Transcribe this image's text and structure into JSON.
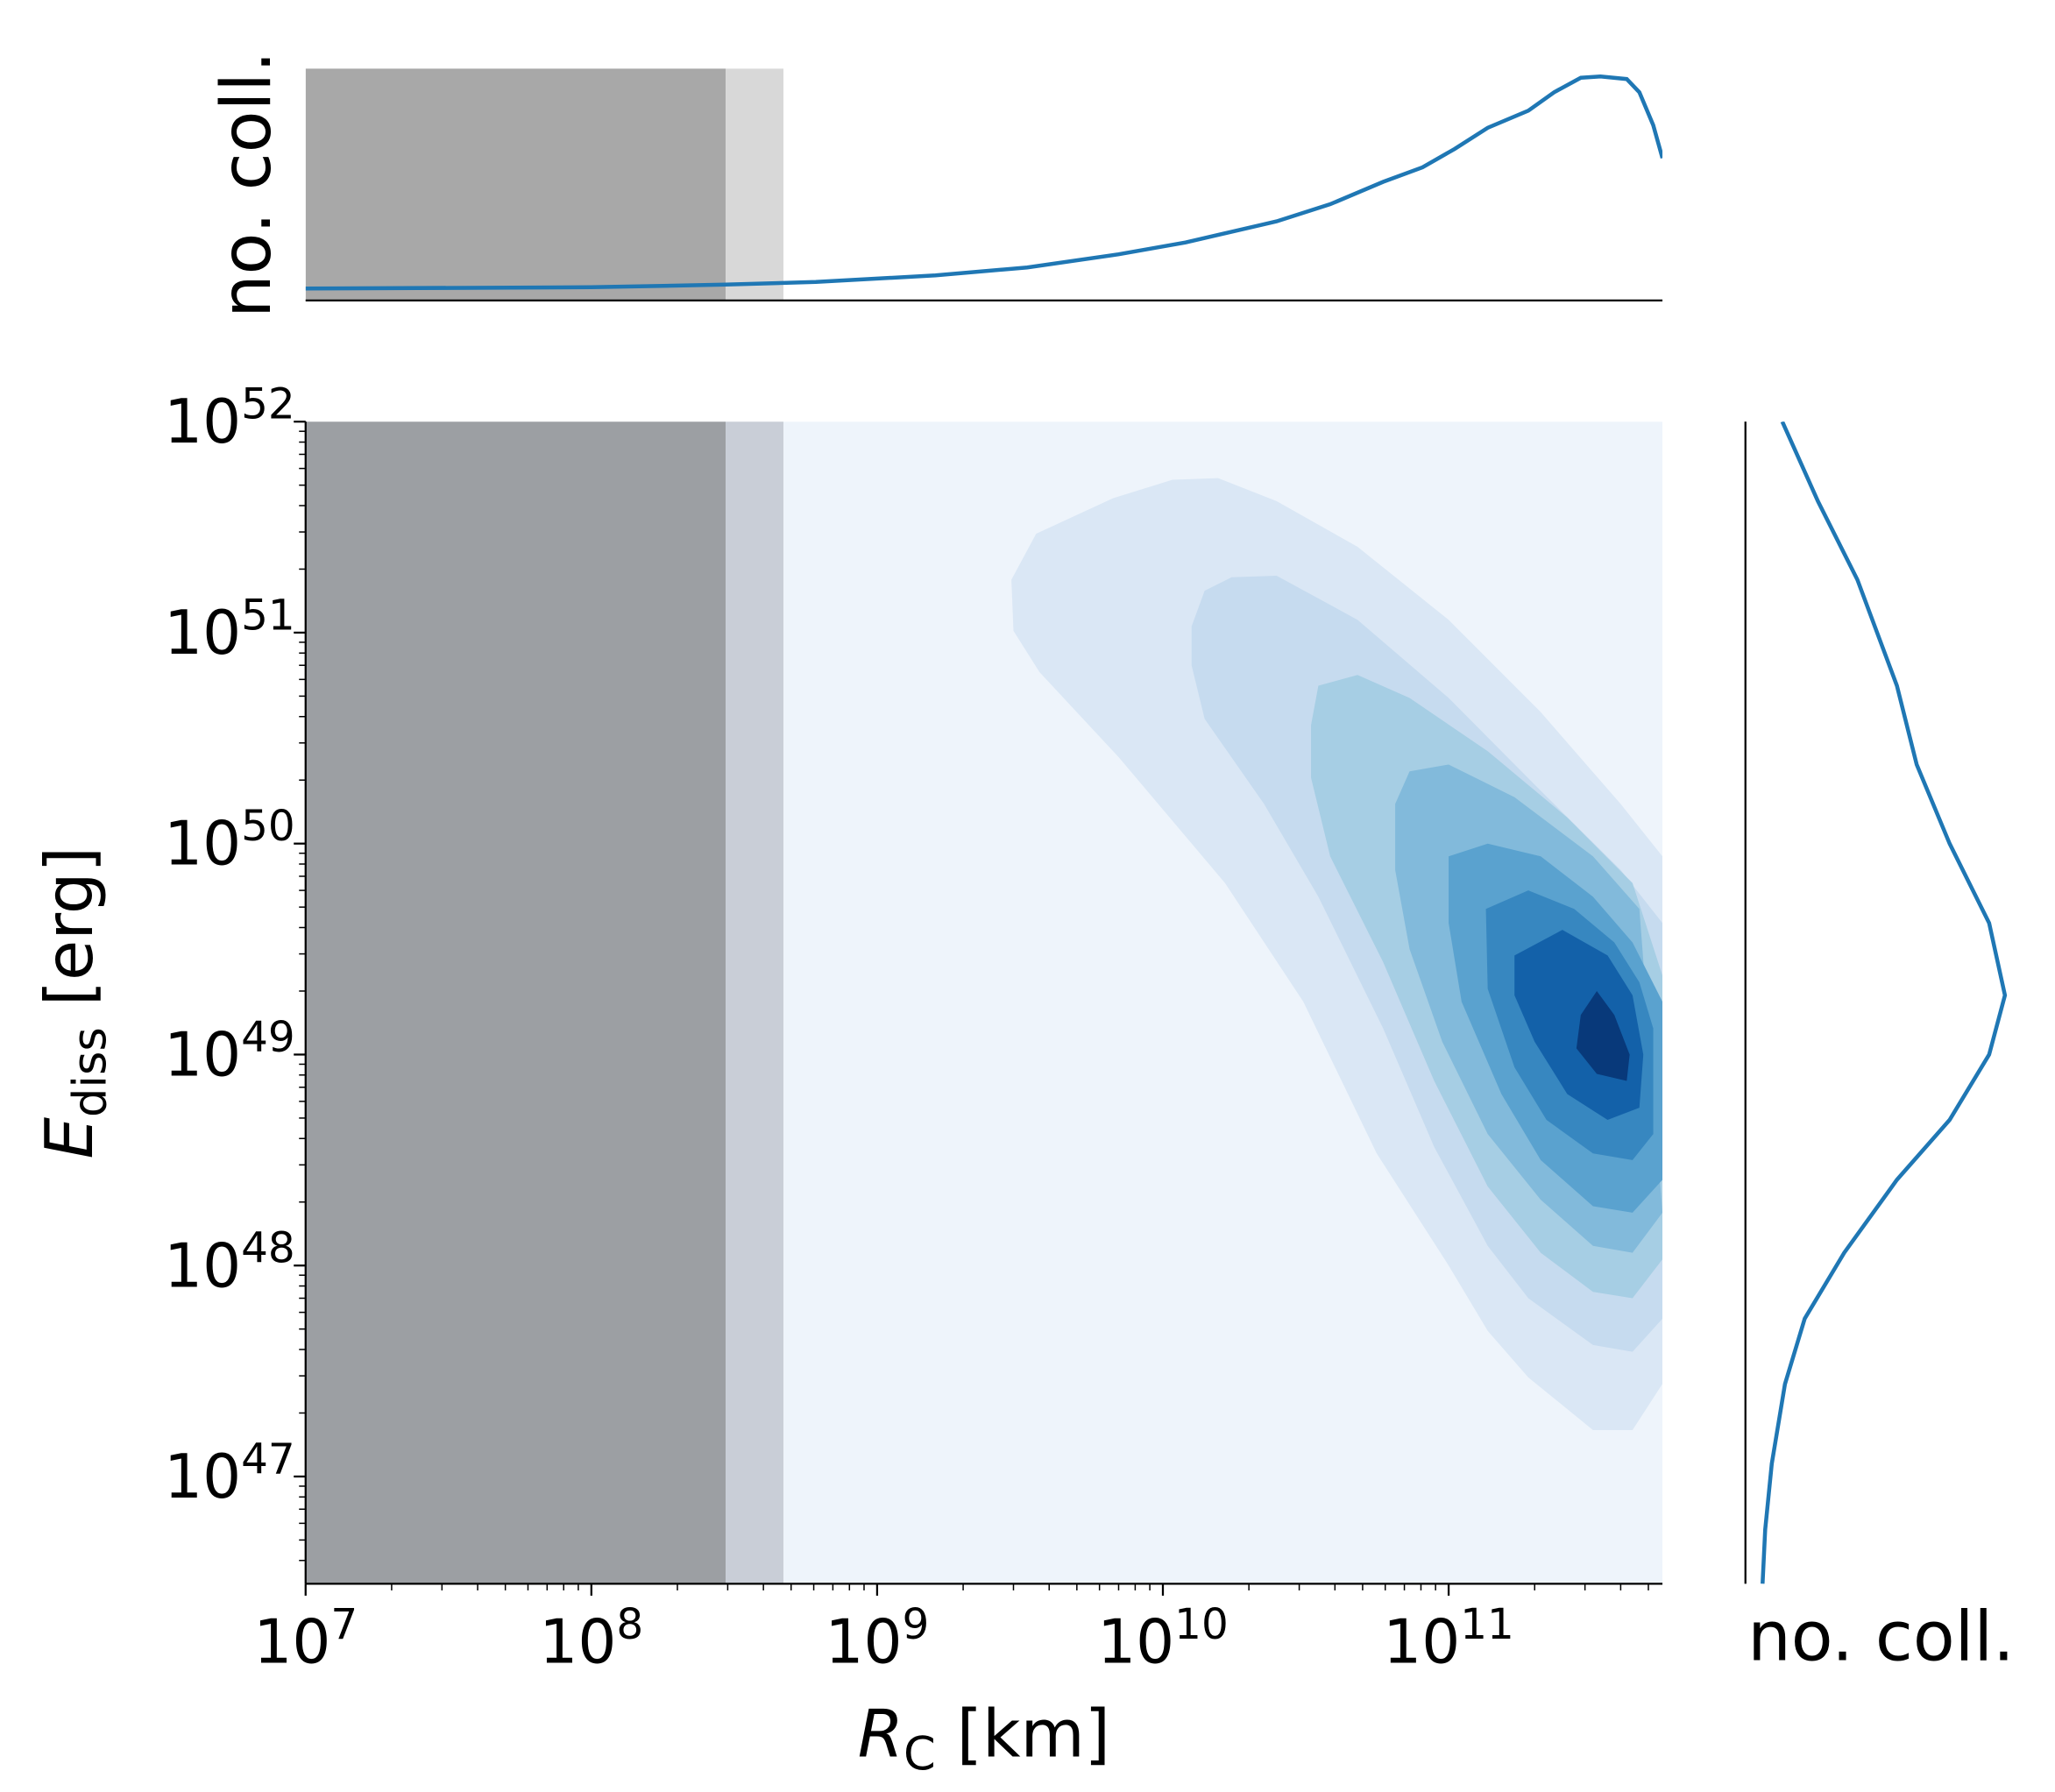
{
  "chart_data": [
    {
      "type": "contour",
      "xlabel": [
        "R",
        "C",
        " [km]"
      ],
      "ylabel": [
        "E",
        "diss",
        " [erg]"
      ],
      "xscale": "log",
      "yscale": "log",
      "xlim": [
        10000000.0,
        560000000000.0
      ],
      "ylim": [
        3.1e+46,
        1e+52
      ],
      "xticks": [
        {
          "value": 10000000.0,
          "label": [
            "10",
            "7"
          ]
        },
        {
          "value": 100000000.0,
          "label": [
            "10",
            "8"
          ]
        },
        {
          "value": 1000000000.0,
          "label": [
            "10",
            "9"
          ]
        },
        {
          "value": 10000000000.0,
          "label": [
            "10",
            "10"
          ]
        },
        {
          "value": 100000000000.0,
          "label": [
            "10",
            "11"
          ]
        }
      ],
      "yticks": [
        {
          "value": 1e+47,
          "label": [
            "10",
            "47"
          ]
        },
        {
          "value": 1e+48,
          "label": [
            "10",
            "48"
          ]
        },
        {
          "value": 1e+49,
          "label": [
            "10",
            "49"
          ]
        },
        {
          "value": 1e+50,
          "label": [
            "10",
            "50"
          ]
        },
        {
          "value": 1e+51,
          "label": [
            "10",
            "51"
          ]
        },
        {
          "value": 1e+52,
          "label": [
            "10",
            "52"
          ]
        }
      ],
      "background": "#eef4fb",
      "shaded_regions": [
        {
          "xlim": [
            10000000.0,
            295000000.0
          ],
          "color": "#9c9fa3"
        },
        {
          "xlim": [
            295000000.0,
            470000000.0
          ],
          "color": "#c9ced7"
        }
      ],
      "levels": [
        {
          "color": "#dae7f5",
          "x": [
            2950000000.0,
            3600000000.0,
            6700000000.0,
            10800000000.0,
            15600000000.0,
            25000000000.0,
            48000000000.0,
            100000000000.0,
            210000000000.0,
            400000000000.0,
            560000000000.0,
            560000000000.0,
            440000000000.0,
            320000000000.0,
            190000000000.0,
            137000000000.0,
            100000000000.0,
            56000000000.0,
            31000000000.0,
            16500000000.0,
            7000000000.0,
            3700000000.0,
            3000000000.0
          ],
          "y": [
            1.78e+51,
            2.94e+51,
            4.34e+51,
            5.3e+51,
            5.4e+51,
            4.2e+51,
            2.55e+51,
            1.15e+51,
            4.2e+50,
            1.54e+50,
            8.7e+49,
            2.75e+47,
            1.66e+47,
            1.66e+47,
            2.95e+47,
            4.9e+47,
            1e+48,
            3.4e+48,
            1.78e+49,
            6.5e+49,
            2.57e+50,
            6.5e+50,
            1.02e+51
          ]
        },
        {
          "color": "#c6dbef",
          "x": [
            12600000000.0,
            14000000000.0,
            17400000000.0,
            25000000000.0,
            48000000000.0,
            100000000000.0,
            210000000000.0,
            400000000000.0,
            560000000000.0,
            560000000000.0,
            440000000000.0,
            320000000000.0,
            190000000000.0,
            137000000000.0,
            89000000000.0,
            59000000000.0,
            35000000000.0,
            22600000000.0,
            14000000000.0,
            12600000000.0
          ],
          "y": [
            1.07e+51,
            1.58e+51,
            1.83e+51,
            1.86e+51,
            1.15e+51,
            4.9e+50,
            1.78e+50,
            7.5e+49,
            4.2e+49,
            5.6e+47,
            3.9e+47,
            4.2e+47,
            7e+47,
            1.24e+48,
            3.65e+48,
            1.33e+49,
            5.6e+49,
            1.54e+50,
            3.9e+50,
            7e+50
          ]
        },
        {
          "color": "#a6cee4",
          "x": [
            33000000000.0,
            35000000000.0,
            48000000000.0,
            73000000000.0,
            137000000000.0,
            260000000000.0,
            440000000000.0,
            560000000000.0,
            560000000000.0,
            440000000000.0,
            320000000000.0,
            210000000000.0,
            137000000000.0,
            89000000000.0,
            59000000000.0,
            38500000000.0,
            33000000000.0
          ],
          "y": [
            3.65e+50,
            5.6e+50,
            6.3e+50,
            4.9e+50,
            2.74e+50,
            1.33e+50,
            6.5e+49,
            2.37e+49,
            1.07e+48,
            7e+47,
            7.5e+47,
            1.15e+48,
            2.37e+48,
            7.5e+48,
            2.74e+49,
            8.7e+49,
            2.05e+50
          ]
        },
        {
          "color": "#82badb",
          "x": [
            65000000000.0,
            73000000000.0,
            100000000000.0,
            170000000000.0,
            320000000000.0,
            465000000000.0,
            560000000000.0,
            440000000000.0,
            320000000000.0,
            210000000000.0,
            137000000000.0,
            95000000000.0,
            73000000000.0,
            65000000000.0
          ],
          "y": [
            1.54e+50,
            2.2e+50,
            2.37e+50,
            1.66e+50,
            8.7e+49,
            4.9e+49,
            1.78e+48,
            1.15e+48,
            1.24e+48,
            2.05e+48,
            4.2e+48,
            1.15e+49,
            3.16e+49,
            7.5e+49
          ]
        },
        {
          "color": "#5aa2cf",
          "x": [
            100000000000.0,
            137000000000.0,
            210000000000.0,
            320000000000.0,
            440000000000.0,
            560000000000.0,
            560000000000.0,
            440000000000.0,
            320000000000.0,
            210000000000.0,
            153000000000.0,
            111000000000.0,
            100000000000.0
          ],
          "y": [
            8.7e+49,
            1e+50,
            8.7e+49,
            5.6e+49,
            3.4e+49,
            1.78e+49,
            2.55e+48,
            1.78e+48,
            1.91e+48,
            3.16e+48,
            6.5e+48,
            1.78e+49,
            4.2e+49
          ]
        },
        {
          "color": "#3787c0",
          "x": [
            135000000000.0,
            190000000000.0,
            275000000000.0,
            380000000000.0,
            465000000000.0,
            520000000000.0,
            520000000000.0,
            440000000000.0,
            320000000000.0,
            220000000000.0,
            170000000000.0,
            137000000000.0
          ],
          "y": [
            4.9e+49,
            6e+49,
            4.9e+49,
            3.4e+49,
            2.2e+49,
            1.33e+49,
            4.2e+48,
            3.16e+48,
            3.4e+48,
            4.9e+48,
            8.7e+48,
            2.05e+49
          ]
        },
        {
          "color": "#1361a9",
          "x": [
            170000000000.0,
            250000000000.0,
            360000000000.0,
            440000000000.0,
            480000000000.0,
            465000000000.0,
            360000000000.0,
            260000000000.0,
            200000000000.0,
            170000000000.0
          ],
          "y": [
            2.95e+49,
            3.9e+49,
            2.95e+49,
            1.91e+49,
            1e+49,
            5.6e+48,
            4.9e+48,
            6.5e+48,
            1.15e+49,
            1.91e+49
          ]
        },
        {
          "color": "#08397a",
          "x": [
            290000000000.0,
            330000000000.0,
            380000000000.0,
            430000000000.0,
            420000000000.0,
            330000000000.0,
            280000000000.0
          ],
          "y": [
            1.54e+49,
            2e+49,
            1.54e+49,
            1e+49,
            7.5e+48,
            8.1e+48,
            1.07e+49
          ]
        }
      ]
    },
    {
      "type": "line",
      "orientation": "horizontal",
      "ylabel": "no. coll.",
      "xscale": "log",
      "xlim": [
        10000000.0,
        560000000000.0
      ],
      "ylim": [
        0,
        176
      ],
      "shaded_regions": [
        {
          "xlim": [
            10000000.0,
            295000000.0
          ],
          "color": "#a8a8a8"
        },
        {
          "xlim": [
            295000000.0,
            470000000.0
          ],
          "color": "#d8d8d8"
        }
      ],
      "series": [
        {
          "color": "#1f77b4",
          "x": [
            10000000.0,
            100000000.0,
            295000000.0,
            610000000.0,
            1600000000.0,
            3350000000.0,
            7000000000.0,
            12000000000.0,
            25000000000.0,
            38500000000.0,
            59000000000.0,
            81000000000.0,
            105000000000.0,
            137000000000.0,
            190000000000.0,
            234000000000.0,
            290000000000.0,
            340000000000.0,
            420000000000.0,
            465000000000.0,
            520000000000.0,
            560000000000.0
          ],
          "values": [
            9,
            10,
            12,
            14,
            19,
            25,
            35,
            44,
            60,
            73,
            90,
            101,
            115,
            131,
            144,
            158,
            169,
            170,
            168,
            158,
            133,
            108
          ]
        }
      ]
    },
    {
      "type": "line",
      "orientation": "vertical",
      "xlabel": "no. coll.",
      "yscale": "log",
      "ylim": [
        3.1e+46,
        1e+52
      ],
      "xlim": [
        0,
        200
      ],
      "series": [
        {
          "color": "#1f77b4",
          "y": [
            1e+52,
            4.2e+51,
            1.78e+51,
            5.6e+50,
            2.37e+50,
            1e+50,
            4.2e+49,
            1.91e+49,
            1e+49,
            4.9e+48,
            2.55e+48,
            1.15e+48,
            5.6e+47,
            2.74e+47,
            1.15e+47,
            5.6e+46,
            3.1e+46
          ],
          "values": [
            28,
            55,
            85,
            115,
            130,
            155,
            185,
            197,
            185,
            155,
            115,
            75,
            45,
            30,
            20,
            15,
            13
          ]
        }
      ]
    }
  ]
}
